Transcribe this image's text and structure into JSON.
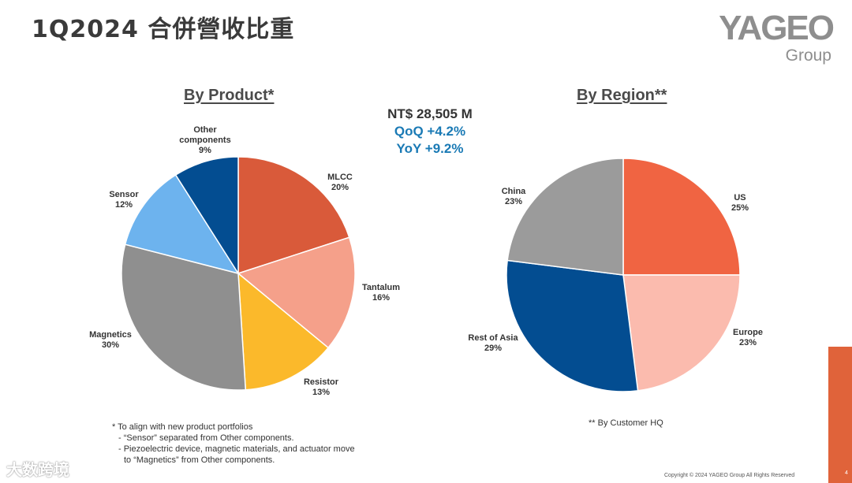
{
  "header": {
    "title": "1Q2024 合併營收比重"
  },
  "logo": {
    "brand": "YAGEO",
    "group": "Group"
  },
  "summary": {
    "total": "NT$ 28,505 M",
    "qoq": "QoQ +4.2%",
    "yoy": "YoY +9.2%"
  },
  "chart_data": [
    {
      "type": "pie",
      "title": "By Product*",
      "slices": [
        {
          "label": "MLCC",
          "value": 20,
          "value_label": "20%",
          "color": "#d95a3a"
        },
        {
          "label": "Tantalum",
          "value": 16,
          "value_label": "16%",
          "color": "#f5a08a"
        },
        {
          "label": "Resistor",
          "value": 13,
          "value_label": "13%",
          "color": "#fbb92b"
        },
        {
          "label": "Magnetics",
          "value": 30,
          "value_label": "30%",
          "color": "#8f8f8f"
        },
        {
          "label": "Sensor",
          "value": 12,
          "value_label": "12%",
          "color": "#6db3ee"
        },
        {
          "label": "Other components",
          "value": 9,
          "value_label": "9%",
          "color": "#034d91"
        }
      ]
    },
    {
      "type": "pie",
      "title": "By Region**",
      "slices": [
        {
          "label": "US",
          "value": 25,
          "value_label": "25%",
          "color": "#f06442"
        },
        {
          "label": "Europe",
          "value": 23,
          "value_label": "23%",
          "color": "#fbbbae"
        },
        {
          "label": "Rest of Asia",
          "value": 29,
          "value_label": "29%",
          "color": "#034d91"
        },
        {
          "label": "China",
          "value": 23,
          "value_label": "23%",
          "color": "#9b9b9b"
        }
      ]
    }
  ],
  "footnotes": {
    "line1": "* To align with new product portfolios",
    "line2": "- “Sensor” separated from Other components.",
    "line3": "- Piezoelectric device, magnetic materials, and actuator move",
    "line4": "to “Magnetics” from Other components.",
    "region_note": "** By Customer HQ"
  },
  "footer": {
    "copyright": "Copyright © 2024 YAGEO Group  All Rights Reserved",
    "page": "4",
    "watermark": "大数跨境"
  }
}
